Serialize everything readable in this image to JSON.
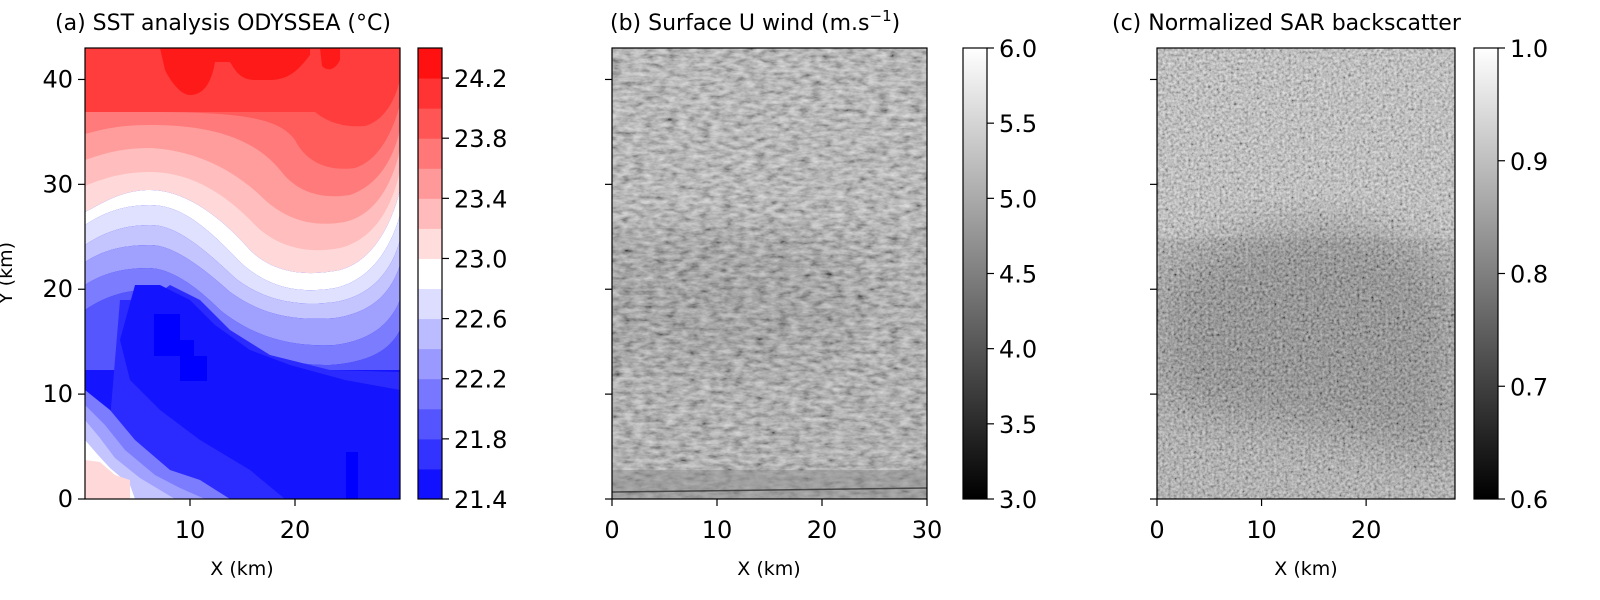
{
  "chart_data": [
    {
      "type": "heatmap",
      "title": "(a) SST analysis ODYSSEA (°C)",
      "xlabel": "X (km)",
      "ylabel": "Y (km)",
      "xlim": [
        0,
        30
      ],
      "ylim": [
        0,
        43
      ],
      "xticks": [
        "10",
        "20"
      ],
      "yticks": [
        "0",
        "10",
        "20",
        "30",
        "40"
      ],
      "colormap": "bwr",
      "colorbar": {
        "ticks": [
          "21.4",
          "21.8",
          "22.2",
          "22.6",
          "23.0",
          "23.4",
          "23.8",
          "24.2"
        ],
        "range": [
          21.4,
          24.4
        ],
        "levels": 15
      },
      "description_values": {
        "coldest": 21.5,
        "warmest": 24.3,
        "front_value": 23.0
      }
    },
    {
      "type": "heatmap",
      "title": "(b) Surface U wind (m.s−1)",
      "title_main": "(b) Surface U wind (m.s",
      "title_sup": "−1",
      "title_end": ")",
      "xlabel": "X (km)",
      "xlim": [
        0,
        30
      ],
      "xticks": [
        "0",
        "10",
        "20",
        "30"
      ],
      "colormap": "gray",
      "colorbar": {
        "ticks": [
          "3.0",
          "3.5",
          "4.0",
          "4.5",
          "5.0",
          "5.5",
          "6.0"
        ],
        "range": [
          3.0,
          6.0
        ]
      }
    },
    {
      "type": "heatmap",
      "title": "(c) Normalized SAR backscatter",
      "xlabel": "X (km)",
      "xlim": [
        0,
        28.5
      ],
      "xticks": [
        "0",
        "10",
        "20"
      ],
      "colormap": "gray",
      "colorbar": {
        "ticks": [
          "0.6",
          "0.7",
          "0.8",
          "0.9",
          "1.0"
        ],
        "range": [
          0.6,
          1.0
        ]
      }
    }
  ],
  "colors": {
    "cold": "#0000ff",
    "warm": "#ff0000",
    "mid": "#ffffff"
  }
}
